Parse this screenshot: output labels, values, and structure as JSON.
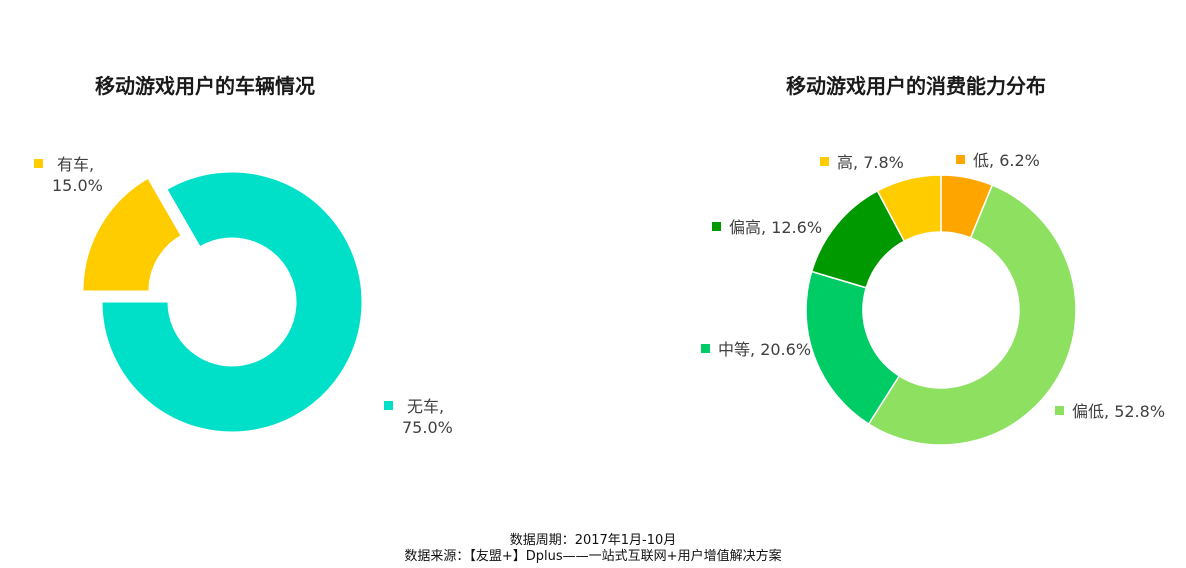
{
  "chart_data": [
    {
      "type": "pie",
      "title": "移动游戏用户的车辆情况",
      "slices": [
        {
          "name": "有车",
          "value": 15.0,
          "label": "15.0%",
          "color": "#ffcc00",
          "exploded": true
        },
        {
          "name": "无车",
          "value": 75.0,
          "label": "75.0%",
          "color": "#00e0c8",
          "exploded": false
        }
      ]
    },
    {
      "type": "pie",
      "title": "移动游戏用户的消费能力分布",
      "slices": [
        {
          "name": "低",
          "value": 6.2,
          "label": "6.2%",
          "color": "#ffa500"
        },
        {
          "name": "偏低",
          "value": 52.8,
          "label": "52.8%",
          "color": "#8ee060"
        },
        {
          "name": "中等",
          "value": 20.6,
          "label": "20.6%",
          "color": "#00cc66"
        },
        {
          "name": "偏高",
          "value": 12.6,
          "label": "12.6%",
          "color": "#009900"
        },
        {
          "name": "高",
          "value": 7.8,
          "label": "7.8%",
          "color": "#ffcc00"
        }
      ]
    }
  ],
  "footer": {
    "period": "数据周期：2017年1月-10月",
    "source": "数据来源：【友盟+】Dplus——一站式互联网+用户增值解决方案"
  }
}
